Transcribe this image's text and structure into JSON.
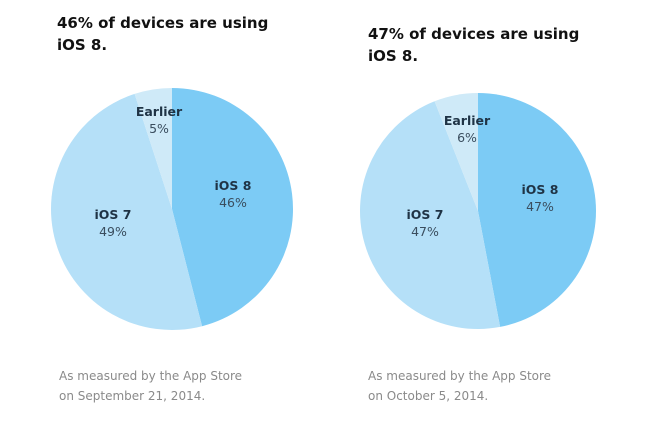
{
  "chart_data": [
    {
      "type": "pie",
      "title": "46% of devices are using iOS 8.",
      "note": [
        "As measured by the App Store",
        "on September 21, 2014."
      ],
      "slices": [
        {
          "label": "iOS 8",
          "value": 46,
          "display": "46%",
          "color": "#7ccbf5"
        },
        {
          "label": "iOS 7",
          "value": 49,
          "display": "49%",
          "color": "#b5e0f8"
        },
        {
          "label": "Earlier",
          "value": 5,
          "display": "5%",
          "color": "#cfeaf8"
        }
      ]
    },
    {
      "type": "pie",
      "title": "47% of devices are using iOS 8.",
      "note": [
        "As measured by the App Store",
        "on October 5, 2014."
      ],
      "slices": [
        {
          "label": "iOS 8",
          "value": 47,
          "display": "47%",
          "color": "#7ccbf5"
        },
        {
          "label": "iOS 7",
          "value": 47,
          "display": "47%",
          "color": "#b5e0f8"
        },
        {
          "label": "Earlier",
          "value": 6,
          "display": "6%",
          "color": "#cfeaf8"
        }
      ]
    }
  ]
}
